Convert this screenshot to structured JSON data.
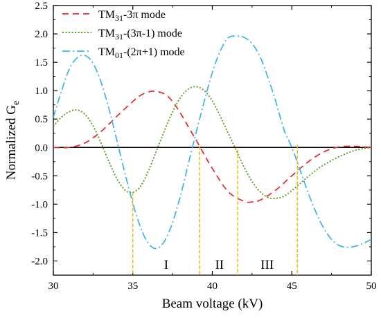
{
  "chart_data": {
    "type": "line",
    "title": "",
    "xlabel": "Beam voltage (kV)",
    "ylabel": "Normalized G",
    "ylabel_subscript": "e",
    "xlim": [
      30,
      50
    ],
    "ylim": [
      -2.25,
      2.5
    ],
    "xticks": [
      30,
      35,
      40,
      45,
      50
    ],
    "yticks": [
      -2.0,
      -1.5,
      -1.0,
      -0.5,
      0.0,
      0.5,
      1.0,
      1.5,
      2.0,
      2.5
    ],
    "xtick_labels": [
      "30",
      "35",
      "40",
      "45",
      "50"
    ],
    "ytick_labels": [
      "-2.0",
      "-1.5",
      "-1.0",
      "-0.5",
      "0.0",
      "0.5",
      "1.0",
      "1.5",
      "2.0",
      "2.5"
    ],
    "grid": false,
    "legend_position": "top-left",
    "zero_line": true,
    "series": [
      {
        "legend": {
          "base": "TM",
          "sub": "31",
          "rest": "-3π mode"
        },
        "color": "#e8262a",
        "dash": "dashed",
        "x": [
          30,
          31,
          32,
          33,
          34,
          35,
          35.5,
          36,
          36.4,
          37,
          37.5,
          38,
          38.5,
          39,
          39.2,
          39.5,
          40,
          41,
          42,
          42.5,
          43,
          44,
          45,
          46,
          47,
          48,
          49,
          49.5,
          50
        ],
        "y": [
          0.0,
          0.0,
          0.08,
          0.28,
          0.55,
          0.81,
          0.92,
          0.98,
          0.99,
          0.94,
          0.81,
          0.6,
          0.36,
          0.12,
          0.02,
          -0.13,
          -0.37,
          -0.78,
          -0.95,
          -0.96,
          -0.93,
          -0.75,
          -0.5,
          -0.26,
          -0.08,
          0.01,
          0.02,
          0.01,
          0.0
        ]
      },
      {
        "legend": {
          "base": "TM",
          "sub": "31",
          "rest": "-(3π-1) mode"
        },
        "color": "#5b9b1f",
        "dash": "dotted",
        "x": [
          30,
          30.5,
          31,
          31.5,
          32,
          32.5,
          33,
          33.5,
          34,
          34.5,
          35,
          35.5,
          36,
          36.5,
          37,
          37.5,
          38,
          38.5,
          39,
          39.5,
          40,
          40.5,
          41,
          41.5,
          42,
          42.5,
          43,
          43.5,
          44,
          44.5,
          45,
          45.5,
          46,
          46.5,
          47,
          48,
          49,
          50
        ],
        "y": [
          0.37,
          0.53,
          0.63,
          0.66,
          0.58,
          0.38,
          0.08,
          -0.25,
          -0.55,
          -0.75,
          -0.79,
          -0.68,
          -0.4,
          -0.05,
          0.3,
          0.63,
          0.88,
          1.03,
          1.07,
          1.0,
          0.82,
          0.55,
          0.25,
          -0.05,
          -0.35,
          -0.6,
          -0.78,
          -0.88,
          -0.9,
          -0.86,
          -0.76,
          -0.64,
          -0.52,
          -0.41,
          -0.31,
          -0.16,
          -0.05,
          0.0
        ]
      },
      {
        "legend": {
          "base": "TM",
          "sub": "01",
          "rest": "-(2π+1) mode"
        },
        "color": "#3bb3e8",
        "dash": "dashdot",
        "x": [
          30,
          30.5,
          31,
          31.5,
          32,
          32.5,
          33,
          33.5,
          34,
          34.5,
          35,
          35.5,
          36,
          36.5,
          37,
          37.5,
          38,
          38.5,
          39,
          39.5,
          40,
          40.5,
          41,
          41.5,
          42,
          42.5,
          43,
          43.5,
          44,
          44.5,
          45,
          45.5,
          46,
          46.5,
          47,
          47.5,
          48,
          48.5,
          49,
          49.5,
          50
        ],
        "y": [
          0.53,
          0.98,
          1.38,
          1.58,
          1.62,
          1.48,
          1.15,
          0.68,
          0.12,
          -0.45,
          -0.98,
          -1.42,
          -1.7,
          -1.78,
          -1.65,
          -1.32,
          -0.85,
          -0.28,
          0.28,
          0.82,
          1.32,
          1.7,
          1.93,
          1.96,
          1.94,
          1.83,
          1.6,
          1.23,
          0.8,
          0.32,
          0.0,
          -0.38,
          -0.78,
          -1.13,
          -1.42,
          -1.62,
          -1.73,
          -1.76,
          -1.74,
          -1.69,
          -1.62
        ]
      }
    ],
    "markers": [
      {
        "x": 35.0,
        "y": -0.79
      },
      {
        "x": 39.2,
        "y": 0.02
      },
      {
        "x": 41.6,
        "y": -0.04
      },
      {
        "x": 45.35,
        "y": 0.04
      }
    ],
    "marker_color": "#f2b705",
    "region_labels": [
      {
        "text": "I",
        "x": 37.1,
        "y": -2.07
      },
      {
        "text": "II",
        "x": 40.45,
        "y": -2.07
      },
      {
        "text": "III",
        "x": 43.45,
        "y": -2.07
      }
    ]
  }
}
